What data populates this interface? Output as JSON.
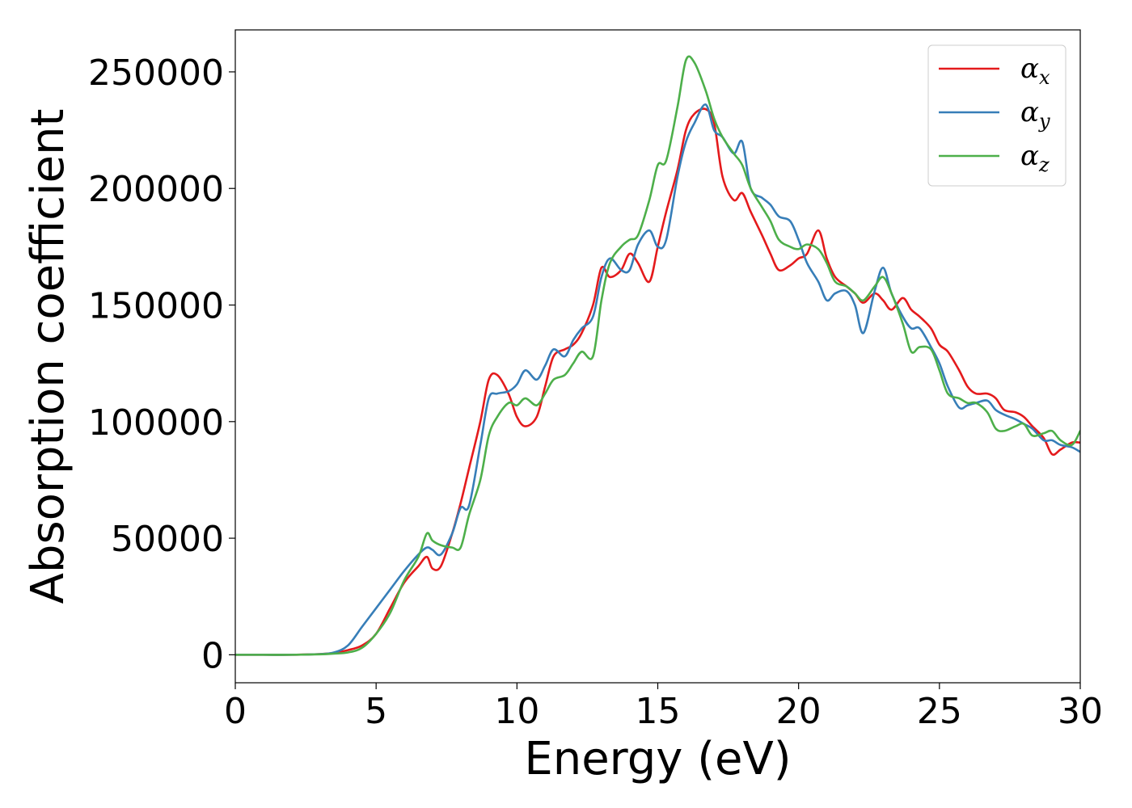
{
  "chart_data": {
    "type": "line",
    "xlabel": "Energy (eV)",
    "ylabel": "Absorption coefficient",
    "xlim": [
      0,
      30
    ],
    "ylim": [
      -12000,
      268000
    ],
    "xticks": [
      0,
      5,
      10,
      15,
      20,
      25,
      30
    ],
    "yticks": [
      0,
      50000,
      100000,
      150000,
      200000,
      250000
    ],
    "legend_position": "top-right",
    "grid": false,
    "series": [
      {
        "name": "α",
        "subscript": "x",
        "color": "#e41a1c",
        "x": [
          0,
          1,
          2,
          3,
          3.5,
          4,
          4.5,
          5,
          5.5,
          6,
          6.5,
          6.8,
          7.0,
          7.3,
          7.7,
          8.0,
          8.3,
          8.7,
          9.0,
          9.3,
          9.7,
          10.0,
          10.3,
          10.7,
          11.0,
          11.3,
          11.7,
          12.0,
          12.3,
          12.7,
          13.0,
          13.3,
          13.7,
          14.0,
          14.3,
          14.7,
          15.0,
          15.3,
          15.7,
          16.0,
          16.3,
          16.7,
          17.0,
          17.3,
          17.7,
          18.0,
          18.3,
          18.7,
          19.0,
          19.3,
          19.7,
          20.0,
          20.3,
          20.7,
          21.0,
          21.3,
          21.7,
          22.0,
          22.3,
          22.7,
          23.0,
          23.3,
          23.7,
          24.0,
          24.3,
          24.7,
          25.0,
          25.3,
          25.7,
          26.0,
          26.3,
          26.7,
          27.0,
          27.3,
          27.7,
          28.0,
          28.3,
          28.7,
          29.0,
          29.3,
          29.7,
          30.0
        ],
        "y": [
          0,
          0,
          0,
          300,
          800,
          2000,
          4000,
          9000,
          20000,
          31000,
          38000,
          42000,
          37000,
          38000,
          52000,
          65000,
          80000,
          100000,
          118000,
          120000,
          112000,
          102000,
          98000,
          102000,
          115000,
          128000,
          131000,
          133000,
          138000,
          150000,
          166000,
          162000,
          165000,
          172000,
          168000,
          160000,
          175000,
          190000,
          208000,
          225000,
          232000,
          234000,
          228000,
          205000,
          195000,
          198000,
          190000,
          180000,
          172000,
          165000,
          167000,
          170000,
          172000,
          182000,
          170000,
          162000,
          158000,
          155000,
          151000,
          155000,
          152000,
          148000,
          153000,
          148000,
          145000,
          140000,
          133000,
          130000,
          122000,
          115000,
          112000,
          112000,
          110000,
          105000,
          104000,
          102000,
          98000,
          93000,
          86000,
          88000,
          91000,
          91000
        ]
      },
      {
        "name": "α",
        "subscript": "y",
        "color": "#377eb8",
        "x": [
          0,
          1,
          2,
          3,
          3.5,
          4,
          4.5,
          5,
          5.5,
          6,
          6.5,
          6.8,
          7.0,
          7.3,
          7.7,
          8.0,
          8.3,
          8.7,
          9.0,
          9.3,
          9.7,
          10.0,
          10.3,
          10.7,
          11.0,
          11.3,
          11.7,
          12.0,
          12.3,
          12.7,
          13.0,
          13.3,
          13.7,
          14.0,
          14.3,
          14.7,
          15.0,
          15.3,
          15.7,
          16.0,
          16.3,
          16.7,
          17.0,
          17.3,
          17.7,
          18.0,
          18.3,
          18.7,
          19.0,
          19.3,
          19.7,
          20.0,
          20.3,
          20.7,
          21.0,
          21.3,
          21.7,
          22.0,
          22.3,
          22.7,
          23.0,
          23.3,
          23.7,
          24.0,
          24.3,
          24.7,
          25.0,
          25.3,
          25.7,
          26.0,
          26.3,
          26.7,
          27.0,
          27.3,
          27.7,
          28.0,
          28.3,
          28.7,
          29.0,
          29.3,
          29.7,
          30.0
        ],
        "y": [
          0,
          0,
          0,
          300,
          1000,
          4000,
          12000,
          20000,
          28000,
          36000,
          43000,
          46000,
          45000,
          43000,
          52000,
          63000,
          64000,
          90000,
          110000,
          112000,
          113000,
          116000,
          122000,
          118000,
          124000,
          131000,
          128000,
          135000,
          140000,
          145000,
          162000,
          170000,
          165000,
          165000,
          176000,
          182000,
          175000,
          178000,
          205000,
          220000,
          228000,
          236000,
          225000,
          222000,
          215000,
          220000,
          200000,
          196000,
          193000,
          188000,
          186000,
          178000,
          168000,
          160000,
          152000,
          155000,
          156000,
          150000,
          138000,
          156000,
          166000,
          155000,
          145000,
          140000,
          140000,
          132000,
          125000,
          115000,
          106000,
          107000,
          108000,
          109000,
          105000,
          103000,
          101000,
          99000,
          97000,
          92000,
          92000,
          90000,
          89000,
          87000
        ]
      },
      {
        "name": "α",
        "subscript": "z",
        "color": "#4daf4a",
        "x": [
          0,
          1,
          2,
          3,
          3.5,
          4,
          4.5,
          5,
          5.5,
          6,
          6.5,
          6.8,
          7.0,
          7.3,
          7.7,
          8.0,
          8.3,
          8.7,
          9.0,
          9.3,
          9.7,
          10.0,
          10.3,
          10.7,
          11.0,
          11.3,
          11.7,
          12.0,
          12.3,
          12.7,
          13.0,
          13.3,
          13.7,
          14.0,
          14.3,
          14.7,
          15.0,
          15.3,
          15.7,
          16.0,
          16.3,
          16.7,
          17.0,
          17.3,
          17.7,
          18.0,
          18.3,
          18.7,
          19.0,
          19.3,
          19.7,
          20.0,
          20.3,
          20.7,
          21.0,
          21.3,
          21.7,
          22.0,
          22.3,
          22.7,
          23.0,
          23.3,
          23.7,
          24.0,
          24.3,
          24.7,
          25.0,
          25.3,
          25.7,
          26.0,
          26.3,
          26.7,
          27.0,
          27.3,
          27.7,
          28.0,
          28.3,
          28.7,
          29.0,
          29.3,
          29.7,
          30.0
        ],
        "y": [
          0,
          0,
          0,
          200,
          500,
          1000,
          3000,
          9000,
          18000,
          32000,
          42000,
          52000,
          49000,
          47000,
          46000,
          46000,
          60000,
          75000,
          94000,
          102000,
          108000,
          107000,
          110000,
          107000,
          112000,
          118000,
          120000,
          125000,
          130000,
          128000,
          152000,
          168000,
          175000,
          178000,
          180000,
          195000,
          210000,
          212000,
          235000,
          255000,
          254000,
          242000,
          230000,
          222000,
          215000,
          210000,
          200000,
          192000,
          186000,
          178000,
          175000,
          174000,
          176000,
          174000,
          168000,
          160000,
          158000,
          155000,
          152000,
          158000,
          162000,
          155000,
          142000,
          130000,
          132000,
          131000,
          122000,
          112000,
          110000,
          108000,
          108000,
          104000,
          97000,
          96000,
          98000,
          99000,
          94000,
          95000,
          96000,
          92000,
          90000,
          96000
        ]
      }
    ]
  }
}
